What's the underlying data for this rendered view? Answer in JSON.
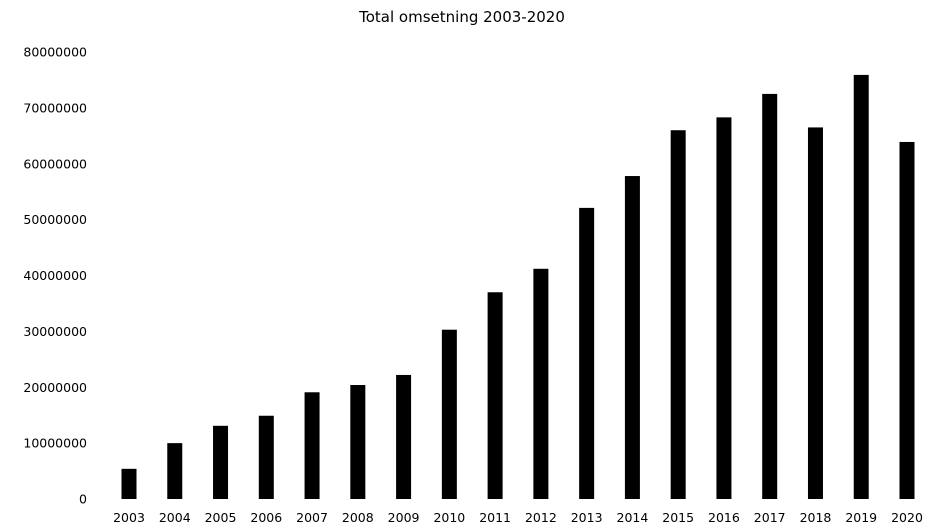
{
  "chart_data": {
    "type": "bar",
    "title": "Total omsetning 2003-2020",
    "xlabel": "",
    "ylabel": "",
    "categories": [
      "2003",
      "2004",
      "2005",
      "2006",
      "2007",
      "2008",
      "2009",
      "2010",
      "2011",
      "2012",
      "2013",
      "2014",
      "2015",
      "2016",
      "2017",
      "2018",
      "2019",
      "2020"
    ],
    "values": [
      5400000,
      10000000,
      13100000,
      14900000,
      19100000,
      20400000,
      22200000,
      30300000,
      37000000,
      41200000,
      52100000,
      57800000,
      66000000,
      68300000,
      72500000,
      66500000,
      75900000,
      63900000
    ],
    "ylim": [
      0,
      80000000
    ],
    "yticks": [
      "0",
      "10000000",
      "20000000",
      "30000000",
      "40000000",
      "50000000",
      "60000000",
      "70000000",
      "80000000"
    ],
    "grid": false,
    "legend": "none",
    "colors": {
      "bar": "#000000",
      "axis": "#000000",
      "background": "#ffffff"
    }
  }
}
